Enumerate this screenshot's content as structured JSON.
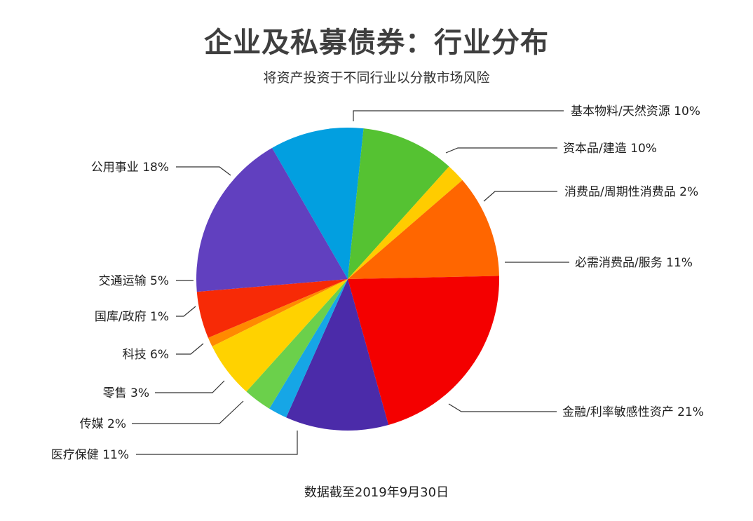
{
  "chart_data": {
    "type": "pie",
    "title": "企业及私募债券：行业分布",
    "subtitle": "将资产投资于不同行业以分散市场风险",
    "footnote": "数据截至2019年9月30日",
    "slices": [
      {
        "label": "基本物料/天然资源 10%",
        "value": 10,
        "color": "#029fe0"
      },
      {
        "label": "资本品/建造 10%",
        "value": 10,
        "color": "#55c232"
      },
      {
        "label": "消费品/周期性消费品 2%",
        "value": 2,
        "color": "#ffcc00"
      },
      {
        "label": "必需消费品/服务 11%",
        "value": 11,
        "color": "#ff6600"
      },
      {
        "label": "金融/利率敏感性资产 21%",
        "value": 21,
        "color": "#f40000"
      },
      {
        "label": "医疗保健 11%",
        "value": 11,
        "color": "#4b2ba9"
      },
      {
        "label": "传媒 2%",
        "value": 2,
        "color": "#16a6e6"
      },
      {
        "label": "零售 3%",
        "value": 3,
        "color": "#6bd04b"
      },
      {
        "label": "科技 6%",
        "value": 6,
        "color": "#ffd200"
      },
      {
        "label": "国库/政府 1%",
        "value": 1,
        "color": "#ff8a00"
      },
      {
        "label": "交通运输 5%",
        "value": 5,
        "color": "#f72a06"
      },
      {
        "label": "公用事业 18%",
        "value": 18,
        "color": "#6140bf"
      }
    ]
  }
}
